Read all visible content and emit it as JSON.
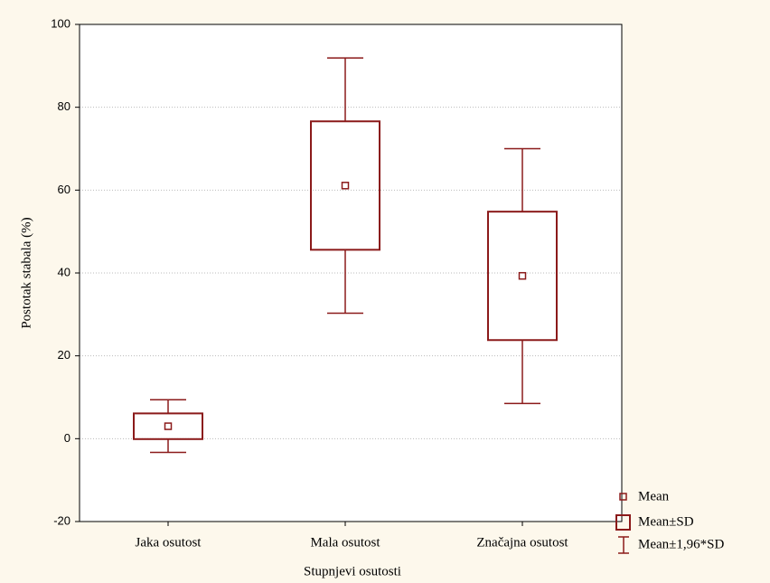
{
  "chart_data": {
    "type": "box",
    "x_label": "Stupnjevi osutosti",
    "y_label": "Postotak stabala (%)",
    "categories": [
      "Jaka osutost",
      "Mala osutost",
      "Značajna osutost"
    ],
    "mean": [
      3.0,
      61.1,
      39.3
    ],
    "box_low": [
      -0.1,
      45.6,
      23.8
    ],
    "box_high": [
      6.1,
      76.6,
      54.8
    ],
    "whisker_low": [
      -3.3,
      30.3,
      8.5
    ],
    "whisker_high": [
      9.4,
      91.9,
      70.0
    ],
    "color": "#8b1a1a",
    "legend": [
      "Mean",
      "Mean±SD",
      "Mean±1,96*SD"
    ],
    "ylim": [
      -20,
      100
    ],
    "yticks": [
      -20,
      0,
      20,
      40,
      60,
      80,
      100
    ],
    "grid": true
  }
}
